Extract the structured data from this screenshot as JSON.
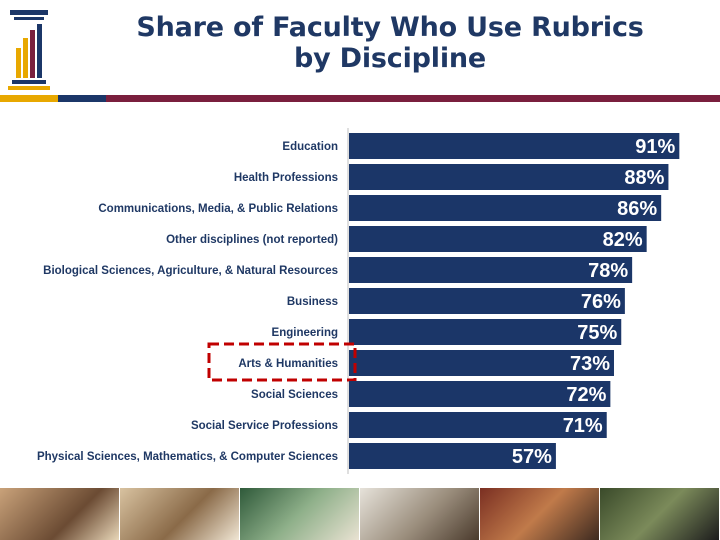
{
  "header": {
    "title_line1": "Share of Faculty Who Use Rubrics",
    "title_line2": "by Discipline",
    "logo_icon": "column-chart-logo-icon"
  },
  "colors": {
    "title": "#1f3864",
    "bar": "#1b3668",
    "bar_text": "#ffffff",
    "highlight": "#c00000",
    "rule_gold": "#e8a800",
    "rule_navy": "#1b3668",
    "rule_maroon": "#7a1f3d"
  },
  "chart_data": {
    "type": "bar",
    "orientation": "horizontal",
    "categories": [
      "Education",
      "Health Professions",
      "Communications, Media, & Public Relations",
      "Other disciplines (not reported)",
      "Biological Sciences, Agriculture, & Natural Resources",
      "Business",
      "Engineering",
      "Arts & Humanities",
      "Social Sciences",
      "Social Service Professions",
      "Physical Sciences, Mathematics, & Computer Sciences"
    ],
    "values": [
      91,
      88,
      86,
      82,
      78,
      76,
      75,
      73,
      72,
      71,
      57
    ],
    "data_labels": [
      "91%",
      "88%",
      "86%",
      "82%",
      "78%",
      "76%",
      "75%",
      "73%",
      "72%",
      "71%",
      "57%"
    ],
    "xlim": [
      0,
      100
    ],
    "grid": false,
    "legend": "none",
    "highlighted_category": "Arts & Humanities"
  },
  "photo_strip": {
    "photos": [
      "students-studying-photo",
      "lecture-photo",
      "professor-blackboard-photo",
      "lab-faculty-photo",
      "library-photo",
      "graduation-photo"
    ]
  }
}
